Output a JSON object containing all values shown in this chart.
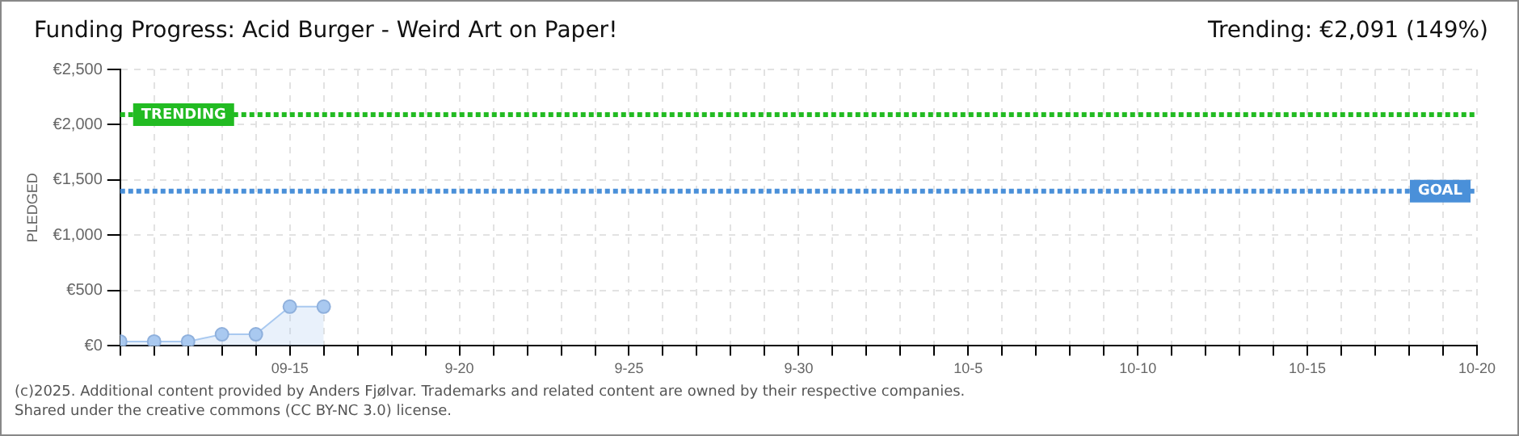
{
  "chart_data": {
    "type": "area",
    "title": "Funding Progress: Acid Burger - Weird Art on Paper!",
    "subtitle": "Trending: €2,091 (149%)",
    "ylabel": "PLEDGED",
    "x": [
      "2025-09-10",
      "2025-09-11",
      "2025-09-12",
      "2025-09-13",
      "2025-09-14",
      "2025-09-15",
      "2025-09-16"
    ],
    "series": [
      {
        "color": "#a9c9f0",
        "values": [
          40,
          40,
          40,
          105,
          105,
          355,
          355
        ]
      }
    ],
    "marker": "circle",
    "grid": true,
    "legend": false,
    "ylim": [
      0,
      2500
    ],
    "yticks": [
      {
        "value": 0,
        "label": "€0"
      },
      {
        "value": 500,
        "label": "€500"
      },
      {
        "value": 1000,
        "label": "€1,000"
      },
      {
        "value": 1500,
        "label": "€1,500"
      },
      {
        "value": 2000,
        "label": "€2,000"
      },
      {
        "value": 2500,
        "label": "€2,500"
      }
    ],
    "xlim": [
      "2025-09-10",
      "2025-10-20"
    ],
    "xticks": [
      {
        "value": "2025-09-10",
        "label": null
      },
      {
        "value": "2025-09-11",
        "label": null
      },
      {
        "value": "2025-09-12",
        "label": null
      },
      {
        "value": "2025-09-13",
        "label": null
      },
      {
        "value": "2025-09-14",
        "label": null
      },
      {
        "value": "2025-09-15",
        "label": "09-15"
      },
      {
        "value": "2025-09-16",
        "label": null
      },
      {
        "value": "2025-09-17",
        "label": null
      },
      {
        "value": "2025-09-18",
        "label": null
      },
      {
        "value": "2025-09-19",
        "label": null
      },
      {
        "value": "2025-09-20",
        "label": "9-20"
      },
      {
        "value": "2025-09-21",
        "label": null
      },
      {
        "value": "2025-09-22",
        "label": null
      },
      {
        "value": "2025-09-23",
        "label": null
      },
      {
        "value": "2025-09-24",
        "label": null
      },
      {
        "value": "2025-09-25",
        "label": "9-25"
      },
      {
        "value": "2025-09-26",
        "label": null
      },
      {
        "value": "2025-09-27",
        "label": null
      },
      {
        "value": "2025-09-28",
        "label": null
      },
      {
        "value": "2025-09-29",
        "label": null
      },
      {
        "value": "2025-09-30",
        "label": "9-30"
      },
      {
        "value": "2025-10-01",
        "label": null
      },
      {
        "value": "2025-10-02",
        "label": null
      },
      {
        "value": "2025-10-03",
        "label": null
      },
      {
        "value": "2025-10-04",
        "label": null
      },
      {
        "value": "2025-10-05",
        "label": "10-5"
      },
      {
        "value": "2025-10-06",
        "label": null
      },
      {
        "value": "2025-10-07",
        "label": null
      },
      {
        "value": "2025-10-08",
        "label": null
      },
      {
        "value": "2025-10-09",
        "label": null
      },
      {
        "value": "2025-10-10",
        "label": "10-10"
      },
      {
        "value": "2025-10-11",
        "label": null
      },
      {
        "value": "2025-10-12",
        "label": null
      },
      {
        "value": "2025-10-13",
        "label": null
      },
      {
        "value": "2025-10-14",
        "label": null
      },
      {
        "value": "2025-10-15",
        "label": "10-15"
      },
      {
        "value": "2025-10-16",
        "label": null
      },
      {
        "value": "2025-10-17",
        "label": null
      },
      {
        "value": "2025-10-18",
        "label": null
      },
      {
        "value": "2025-10-19",
        "label": null
      },
      {
        "value": "2025-10-20",
        "label": "10-20"
      }
    ],
    "ref_lines": [
      {
        "axis": "y",
        "value": 2091,
        "label": "TRENDING",
        "color": "#22bb22",
        "line_style": "dotted"
      },
      {
        "axis": "y",
        "value": 1400,
        "label": "GOAL",
        "color": "#4a90d9",
        "line_style": "dotted"
      }
    ],
    "annotations": [
      "(c)2025. Additional content provided by Anders Fjølvar. Trademarks and related content are owned by their respective companies.",
      "Shared under the creative commons (CC BY-NC 3.0) license."
    ]
  }
}
